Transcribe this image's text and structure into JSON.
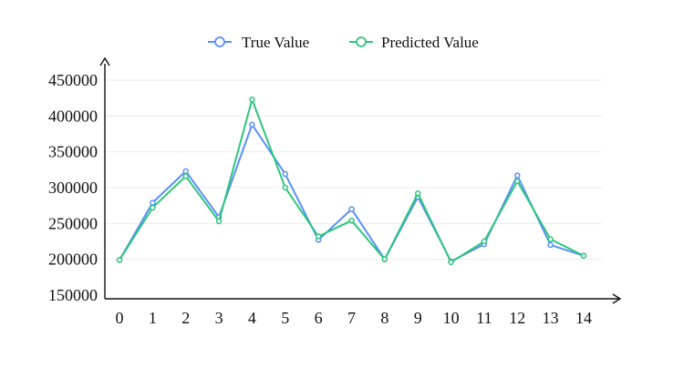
{
  "chart_data": {
    "type": "line",
    "title": "",
    "xlabel": "",
    "ylabel": "",
    "categories": [
      "0",
      "1",
      "2",
      "3",
      "4",
      "5",
      "6",
      "7",
      "8",
      "9",
      "10",
      "11",
      "12",
      "13",
      "14"
    ],
    "ylim": [
      150000,
      460000
    ],
    "yticks": [
      "150000",
      "200000",
      "250000",
      "300000",
      "350000",
      "400000",
      "450000"
    ],
    "ytick_values": [
      150000,
      200000,
      250000,
      300000,
      350000,
      400000,
      450000
    ],
    "grid": "horizontal",
    "legend_position": "top-center",
    "series": [
      {
        "name": "True Value",
        "color": "#5b8ff9",
        "values": [
          199000,
          279000,
          323000,
          259000,
          388000,
          319000,
          227000,
          270000,
          200000,
          287000,
          197000,
          221000,
          317000,
          220000,
          205000
        ]
      },
      {
        "name": "Predicted Value",
        "color": "#2ec67c",
        "values": [
          199000,
          272000,
          316000,
          253000,
          423000,
          300000,
          232000,
          254000,
          200000,
          292000,
          196000,
          225000,
          309000,
          228000,
          205000
        ]
      }
    ]
  }
}
